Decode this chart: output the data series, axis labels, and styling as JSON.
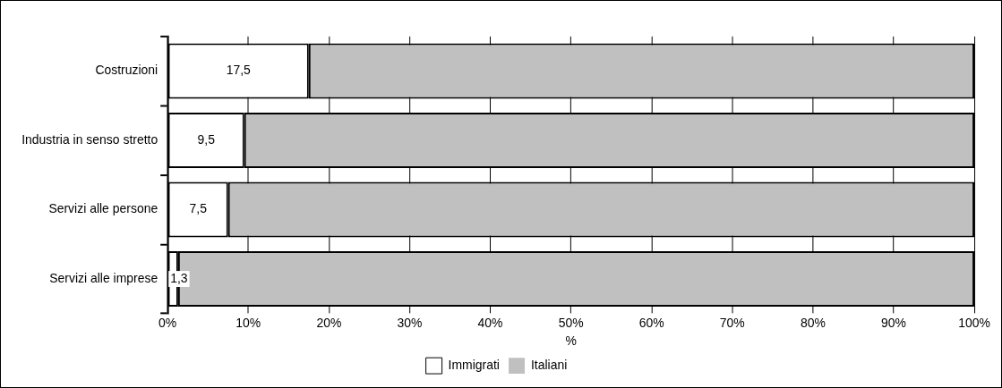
{
  "chart_data": {
    "type": "bar",
    "orientation": "horizontal",
    "stacked": true,
    "categories": [
      "Costruzioni",
      "Industria in senso stretto",
      "Servizi alle persone",
      "Servizi alle imprese"
    ],
    "series": [
      {
        "name": "Immigrati",
        "color": "#ffffff",
        "values": [
          17.5,
          9.5,
          7.5,
          1.3
        ],
        "value_labels": [
          "17,5",
          "9,5",
          "7,5",
          "1,3"
        ]
      },
      {
        "name": "Italiani",
        "color": "#c0c0c0",
        "values": [
          82.5,
          90.5,
          92.5,
          98.7
        ]
      }
    ],
    "xlim": [
      0,
      100
    ],
    "xticks": [
      {
        "value": 0,
        "label": "0%"
      },
      {
        "value": 10,
        "label": "10%"
      },
      {
        "value": 20,
        "label": "20%"
      },
      {
        "value": 30,
        "label": "30%"
      },
      {
        "value": 40,
        "label": "40%"
      },
      {
        "value": 50,
        "label": "50%"
      },
      {
        "value": 60,
        "label": "60%"
      },
      {
        "value": 70,
        "label": "70%"
      },
      {
        "value": 80,
        "label": "80%"
      },
      {
        "value": 90,
        "label": "90%"
      },
      {
        "value": 100,
        "label": "100%"
      }
    ],
    "xlabel": "%",
    "grid": "x",
    "legend": "bottom"
  }
}
